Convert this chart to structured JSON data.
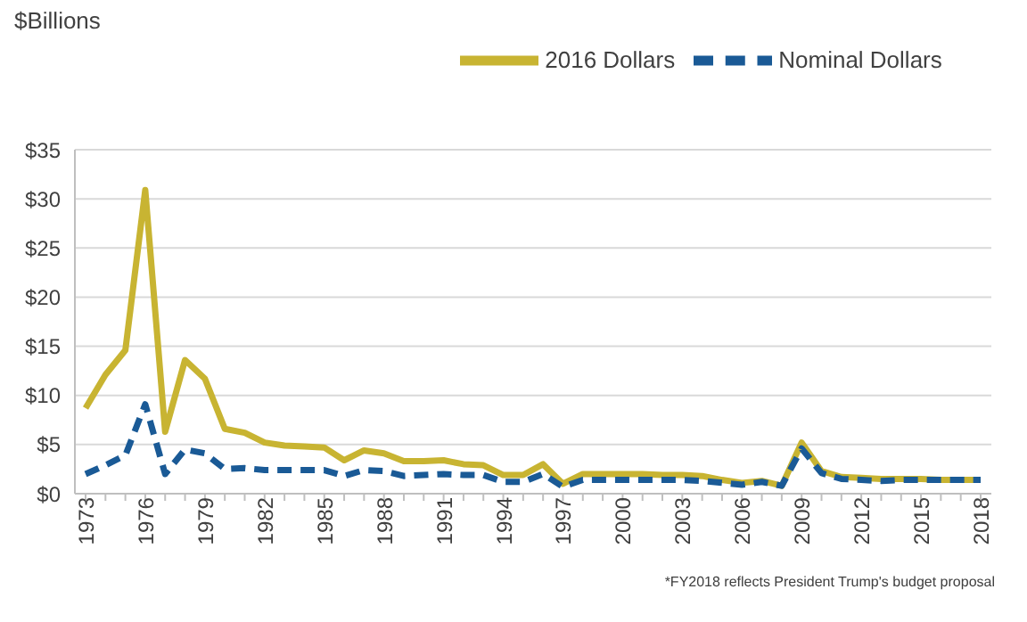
{
  "chart_data": {
    "type": "line",
    "ylabel": "$Billions",
    "categories": [
      "1973",
      null,
      null,
      "1976",
      null,
      null,
      "1979",
      null,
      null,
      "1982",
      null,
      null,
      "1985",
      null,
      null,
      "1988",
      null,
      null,
      "1991",
      null,
      null,
      "1994",
      null,
      null,
      "1997",
      null,
      null,
      "2000",
      null,
      null,
      "2003",
      null,
      null,
      "2006",
      null,
      null,
      "2009",
      null,
      null,
      "2012",
      null,
      null,
      "2015",
      null,
      null,
      "2018"
    ],
    "series": [
      {
        "name": "2016 Dollars",
        "color": "#c8b432",
        "line_style": "solid",
        "values": [
          8.7,
          12.1,
          14.6,
          30.9,
          6.3,
          13.6,
          11.7,
          6.6,
          6.2,
          5.2,
          4.9,
          4.8,
          4.7,
          3.4,
          4.4,
          4.1,
          3.3,
          3.3,
          3.4,
          3.0,
          2.9,
          1.9,
          1.9,
          3.0,
          1.0,
          2.0,
          2.0,
          2.0,
          2.0,
          1.9,
          1.9,
          1.8,
          1.4,
          1.1,
          1.3,
          0.8,
          5.2,
          2.3,
          1.7,
          1.6,
          1.5,
          1.5,
          1.5,
          1.4,
          1.4,
          1.4
        ]
      },
      {
        "name": "Nominal Dollars",
        "color": "#1a5a96",
        "line_style": "dashed",
        "values": [
          2.0,
          2.9,
          3.9,
          9.1,
          2.0,
          4.5,
          4.1,
          2.5,
          2.6,
          2.4,
          2.4,
          2.4,
          2.4,
          1.8,
          2.4,
          2.3,
          1.8,
          1.9,
          2.0,
          1.9,
          1.9,
          1.2,
          1.2,
          2.0,
          0.7,
          1.4,
          1.4,
          1.4,
          1.4,
          1.4,
          1.4,
          1.3,
          1.1,
          0.9,
          1.2,
          0.8,
          4.6,
          2.1,
          1.5,
          1.4,
          1.3,
          1.4,
          1.4,
          1.4,
          1.4,
          1.4
        ]
      }
    ],
    "ylim": [
      0,
      35
    ],
    "yticks": [
      {
        "value": 0,
        "label": "$0"
      },
      {
        "value": 5,
        "label": "$5"
      },
      {
        "value": 10,
        "label": "$10"
      },
      {
        "value": 15,
        "label": "$15"
      },
      {
        "value": 20,
        "label": "$20"
      },
      {
        "value": 25,
        "label": "$25"
      },
      {
        "value": 30,
        "label": "$30"
      },
      {
        "value": 35,
        "label": "$35"
      }
    ],
    "grid": "y",
    "legend": "top",
    "marker": "none",
    "annotations": [
      "*FY2018 reflects President Trump's budget proposal"
    ]
  }
}
